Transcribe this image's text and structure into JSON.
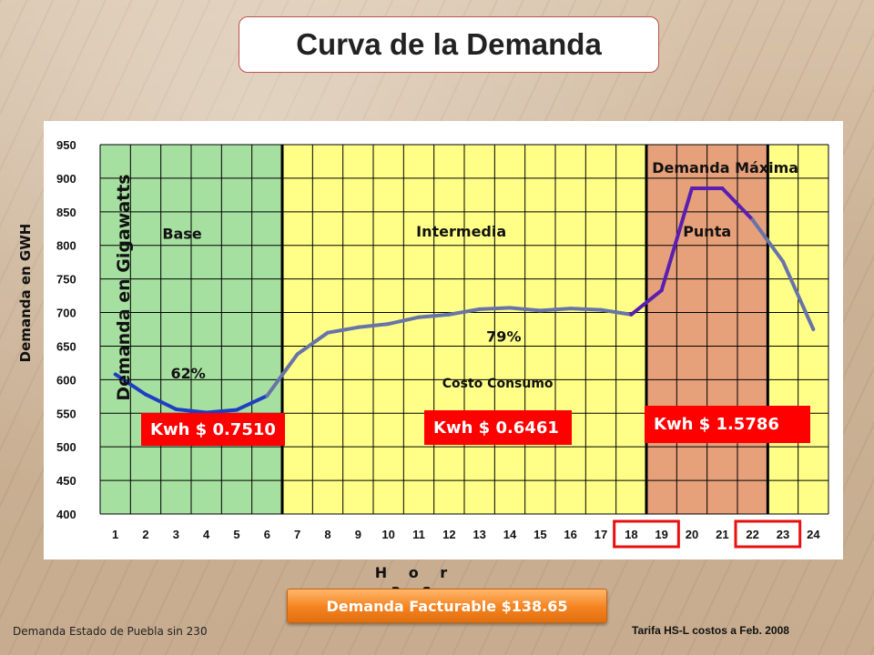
{
  "slide": {
    "title": "Curva de la Demanda",
    "outer_ylabel": "Demanda en GWH",
    "inner_ylabel": "Demanda en Gigawatts",
    "xlabel": "H o r a s",
    "billing_button": "Demanda Facturable $138.65",
    "footnote_left": "Demanda Estado de Puebla sin 230",
    "footnote_right": "Tarifa HS-L costos a Feb. 2008",
    "prices": {
      "base": "Kwh $ 0.7510",
      "intermedia": "Kwh $ 0.6461",
      "punta": "Kwh $ 1.5786"
    }
  },
  "chart_data": {
    "type": "line",
    "title": "",
    "xlabel": "H o r a s",
    "ylabel": "Demanda en GWH",
    "ylim": [
      400,
      950
    ],
    "yticks": [
      400,
      450,
      500,
      550,
      600,
      650,
      700,
      750,
      800,
      850,
      900,
      950
    ],
    "grid": true,
    "categories": [
      "1",
      "2",
      "3",
      "4",
      "5",
      "6",
      "7",
      "8",
      "9",
      "10",
      "11",
      "12",
      "13",
      "14",
      "15",
      "16",
      "17",
      "18",
      "19",
      "20",
      "21",
      "22",
      "23",
      "24"
    ],
    "series": [
      {
        "values": [
          608,
          578,
          556,
          551,
          555,
          576,
          638,
          670,
          678,
          683,
          693,
          697,
          705,
          707,
          703,
          706,
          704,
          697,
          733,
          885,
          885,
          838,
          776,
          675
        ]
      }
    ],
    "regions": [
      {
        "label": "Base",
        "from_hour": 0.5,
        "to_hour": 6.5,
        "color": "#a6e0a0",
        "line_color": "#1f3ec4",
        "percent": "62%"
      },
      {
        "label": "Intermedia",
        "from_hour": 6.5,
        "to_hour": 18.5,
        "color": "#ffff88",
        "line_color": "#6874a8",
        "percent": "79%"
      },
      {
        "label": "Punta",
        "from_hour": 18.5,
        "to_hour": 22.5,
        "color": "#e6a07a",
        "line_color": "#5a1fb0"
      },
      {
        "label": "",
        "from_hour": 22.5,
        "to_hour": 24.5,
        "color": "#ffff88",
        "line_color": "#6874a8"
      }
    ],
    "annotations": [
      {
        "id": "base",
        "text": "Base",
        "hour": 3.2,
        "y": 810
      },
      {
        "id": "inter",
        "text": "Intermedia",
        "hour": 12.4,
        "y": 813
      },
      {
        "id": "punta",
        "text": "Punta",
        "hour": 20.5,
        "y": 813
      },
      {
        "id": "demmax",
        "text": "Demanda Máxima",
        "hour": 21.1,
        "y": 908
      },
      {
        "id": "pct62",
        "text": "62%",
        "hour": 3.4,
        "y": 602
      },
      {
        "id": "pct79",
        "text": "79%",
        "hour": 13.8,
        "y": 657
      },
      {
        "id": "costo",
        "text": "Costo Consumo",
        "hour": 13.6,
        "y": 588
      }
    ],
    "highlighted_hours": [
      [
        "18",
        "19"
      ],
      [
        "22",
        "23"
      ]
    ],
    "colors": {
      "grid": "#000000",
      "highlight_box": "#e81010"
    }
  }
}
